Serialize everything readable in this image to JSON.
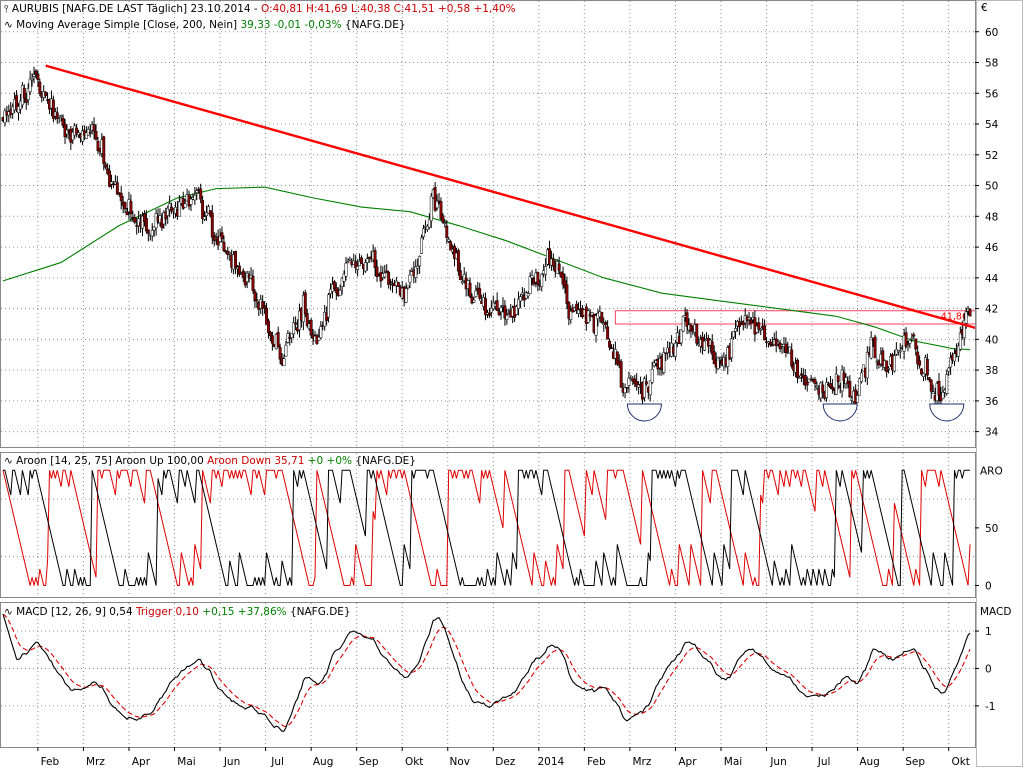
{
  "colors": {
    "price_up": "#ffffff",
    "price_down": "#8b0000",
    "candle_outline": "#000000",
    "trendline": "#ff0000",
    "moving_average": "#008000",
    "aroon_up": "#000000",
    "aroon_down": "#e00000",
    "macd": "#000000",
    "trigger": "#e00000",
    "resistance_band": "#ff4060",
    "arc": "#203070",
    "grid": "#909090"
  },
  "legend": {
    "price": {
      "icon": "ohlc-icon",
      "name": "AURUBIS [NAFG.DE LAST Täglich] 23.10.2014 -",
      "ohlc": "O:40,81 H:41,69 L:40,38 C:41,51 +0,58 +1,40%"
    },
    "ma": {
      "icon": "line-icon",
      "name": "Moving Average Simple [Close, 200, Nein]",
      "value": "39,33 -0,01 -0,03%",
      "symbol": "{NAFG.DE}"
    },
    "aroon": {
      "icon": "line-icon",
      "name": "Aroon [14, 25, 75] Aroon Up 100,00",
      "down": "Aroon Down 35,71",
      "change": "+0 +0%",
      "symbol": "{NAFG.DE}"
    },
    "macd": {
      "icon": "line-icon",
      "name": "MACD [12, 26, 9] 0,54",
      "trigger": "Trigger 0,10",
      "change": "+0,15 +37,86%",
      "symbol": "{NAFG.DE}"
    }
  },
  "chart_data": [
    {
      "type": "candlestick",
      "title": "AURUBIS [NAFG.DE LAST Täglich] 23.10.2014",
      "y_unit": "€",
      "ylim": [
        33,
        62
      ],
      "y_ticks": [
        "60",
        "58",
        "56",
        "54",
        "52",
        "50",
        "48",
        "46",
        "44",
        "42",
        "40",
        "38",
        "36",
        "34"
      ],
      "x_labels": [
        "Feb",
        "Mrz",
        "Apr",
        "Mai",
        "Jun",
        "Jul",
        "Aug",
        "Sep",
        "Okt",
        "Nov",
        "Dez",
        "2014",
        "Feb",
        "Mrz",
        "Apr",
        "Mai",
        "Jun",
        "Jul",
        "Aug",
        "Sep",
        "Okt"
      ],
      "close_anchors": [
        {
          "t": 0,
          "v": 54.5
        },
        {
          "t": 8,
          "v": 55.5
        },
        {
          "t": 18,
          "v": 57
        },
        {
          "t": 26,
          "v": 55
        },
        {
          "t": 36,
          "v": 53
        },
        {
          "t": 46,
          "v": 54
        },
        {
          "t": 54,
          "v": 51
        },
        {
          "t": 66,
          "v": 48
        },
        {
          "t": 75,
          "v": 47
        },
        {
          "t": 88,
          "v": 48.5
        },
        {
          "t": 100,
          "v": 49.5
        },
        {
          "t": 112,
          "v": 46
        },
        {
          "t": 124,
          "v": 44.5
        },
        {
          "t": 130,
          "v": 43
        },
        {
          "t": 138,
          "v": 40.5
        },
        {
          "t": 144,
          "v": 39
        },
        {
          "t": 155,
          "v": 42
        },
        {
          "t": 162,
          "v": 39.8
        },
        {
          "t": 170,
          "v": 43
        },
        {
          "t": 180,
          "v": 45
        },
        {
          "t": 192,
          "v": 45
        },
        {
          "t": 205,
          "v": 43
        },
        {
          "t": 214,
          "v": 45
        },
        {
          "t": 222,
          "v": 49.5
        },
        {
          "t": 230,
          "v": 46.5
        },
        {
          "t": 238,
          "v": 43.5
        },
        {
          "t": 248,
          "v": 42.3
        },
        {
          "t": 262,
          "v": 41.5
        },
        {
          "t": 272,
          "v": 43.5
        },
        {
          "t": 284,
          "v": 45.5
        },
        {
          "t": 292,
          "v": 42
        },
        {
          "t": 300,
          "v": 41.5
        },
        {
          "t": 310,
          "v": 41
        },
        {
          "t": 320,
          "v": 37
        },
        {
          "t": 330,
          "v": 36.5
        },
        {
          "t": 340,
          "v": 38.5
        },
        {
          "t": 352,
          "v": 41
        },
        {
          "t": 362,
          "v": 39.5
        },
        {
          "t": 372,
          "v": 38.5
        },
        {
          "t": 382,
          "v": 41.3
        },
        {
          "t": 392,
          "v": 40.2
        },
        {
          "t": 402,
          "v": 39.5
        },
        {
          "t": 412,
          "v": 37.5
        },
        {
          "t": 422,
          "v": 36.5
        },
        {
          "t": 432,
          "v": 37.5
        },
        {
          "t": 440,
          "v": 36.2
        },
        {
          "t": 448,
          "v": 39.5
        },
        {
          "t": 456,
          "v": 38
        },
        {
          "t": 466,
          "v": 40.3
        },
        {
          "t": 472,
          "v": 39
        },
        {
          "t": 480,
          "v": 37
        },
        {
          "t": 484,
          "v": 36.3
        },
        {
          "t": 490,
          "v": 38.5
        },
        {
          "t": 496,
          "v": 41.5
        }
      ],
      "trendline": [
        {
          "t": 22,
          "v": 57.8
        },
        {
          "t": 499,
          "v": 40.8
        }
      ],
      "moving_average_200": [
        {
          "t": 0,
          "v": 43.8
        },
        {
          "t": 30,
          "v": 45
        },
        {
          "t": 60,
          "v": 47.4
        },
        {
          "t": 90,
          "v": 49.2
        },
        {
          "t": 110,
          "v": 49.8
        },
        {
          "t": 135,
          "v": 49.9
        },
        {
          "t": 160,
          "v": 49.2
        },
        {
          "t": 185,
          "v": 48.6
        },
        {
          "t": 210,
          "v": 48.3
        },
        {
          "t": 235,
          "v": 47.4
        },
        {
          "t": 260,
          "v": 46.4
        },
        {
          "t": 285,
          "v": 45.2
        },
        {
          "t": 310,
          "v": 44
        },
        {
          "t": 340,
          "v": 43
        },
        {
          "t": 370,
          "v": 42.5
        },
        {
          "t": 400,
          "v": 42
        },
        {
          "t": 430,
          "v": 41.5
        },
        {
          "t": 450,
          "v": 40.8
        },
        {
          "t": 470,
          "v": 39.9
        },
        {
          "t": 490,
          "v": 39.4
        },
        {
          "t": 499,
          "v": 39.33
        }
      ],
      "resistance_band": {
        "from_t": 316,
        "to_t": 499,
        "ymin": 41.0,
        "ymax": 41.86
      },
      "resistance_label": "41,86",
      "bottom_arcs": [
        {
          "t": 331
        },
        {
          "t": 432
        },
        {
          "t": 487
        }
      ]
    },
    {
      "type": "line",
      "title": "Aroon [14, 25, 75]",
      "series_labels": [
        "Aroon Up",
        "Aroon Down"
      ],
      "ylim": [
        -10,
        115
      ],
      "y_ticks": [
        "ARO",
        "50",
        "0"
      ],
      "levels": [
        25,
        75
      ]
    },
    {
      "type": "line",
      "title": "MACD [12, 26, 9]",
      "series_labels": [
        "MACD",
        "Trigger"
      ],
      "ylim": [
        -2.1,
        1.75
      ],
      "y_ticks": [
        "MACD",
        "1",
        "0",
        "-1"
      ],
      "last_values": {
        "macd": 0.54,
        "trigger": 0.1
      }
    }
  ]
}
